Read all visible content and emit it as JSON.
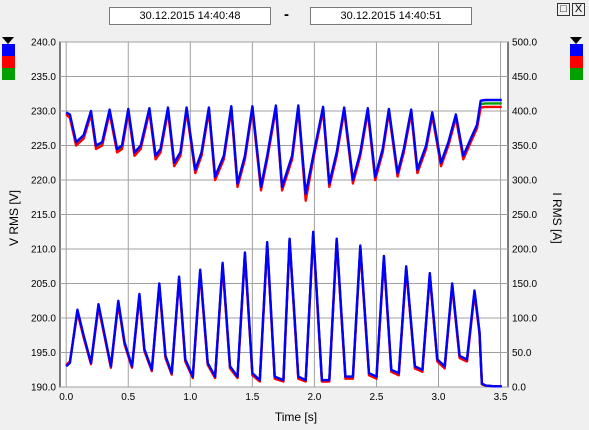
{
  "header": {
    "start_time": "30.12.2015     14:40:48",
    "separator": "-",
    "end_time": "30.12.2015     14:40:51"
  },
  "window_buttons": {
    "restore": "□",
    "close": "X"
  },
  "colors": {
    "phase1": "#0000ff",
    "phase2": "#ff0000",
    "phase3": "#00a000",
    "grid": "#a0a0a0",
    "plot_bg": "#ffffff"
  },
  "chart_data": {
    "type": "line",
    "title": "",
    "xlabel": "Time [s]",
    "ylabel_left": "V RMS [V]",
    "ylabel_right": "I RMS [A]",
    "xlim": [
      -0.05,
      3.56
    ],
    "ylim_left": [
      190.0,
      240.0
    ],
    "ylim_right": [
      0.0,
      500.0
    ],
    "x_ticks": [
      "0.0",
      "0.5",
      "1.0",
      "1.5",
      "2.0",
      "2.5",
      "3.0",
      "3.5"
    ],
    "y_ticks_left": [
      "190.0",
      "195.0",
      "200.0",
      "205.0",
      "210.0",
      "215.0",
      "220.0",
      "225.0",
      "230.0",
      "235.0",
      "240.0"
    ],
    "y_ticks_right": [
      "0.0",
      "50.0",
      "100.0",
      "150.0",
      "200.0",
      "250.0",
      "300.0",
      "350.0",
      "400.0",
      "450.0",
      "500.0"
    ],
    "grid": true,
    "legend": "left and right color swatches (blue, red, green)",
    "series": [
      {
        "axis": "left",
        "color": "#0000ff",
        "x": [
          0.0,
          0.03,
          0.08,
          0.14,
          0.2,
          0.24,
          0.29,
          0.35,
          0.41,
          0.45,
          0.5,
          0.55,
          0.6,
          0.67,
          0.72,
          0.76,
          0.82,
          0.87,
          0.92,
          0.97,
          1.04,
          1.09,
          1.15,
          1.2,
          1.27,
          1.33,
          1.38,
          1.44,
          1.5,
          1.57,
          1.62,
          1.69,
          1.74,
          1.82,
          1.87,
          1.93,
          1.99,
          2.07,
          2.12,
          2.18,
          2.24,
          2.31,
          2.37,
          2.43,
          2.49,
          2.55,
          2.6,
          2.67,
          2.72,
          2.78,
          2.83,
          2.9,
          2.95,
          3.02,
          3.08,
          3.14,
          3.2,
          3.26,
          3.31,
          3.34,
          3.38,
          3.45,
          3.51
        ],
        "y": [
          229.8,
          229.5,
          225.5,
          226.5,
          230.0,
          225.0,
          225.5,
          230.2,
          224.5,
          225.0,
          230.3,
          224.0,
          225.0,
          230.4,
          223.5,
          224.5,
          230.5,
          222.5,
          224.0,
          230.5,
          221.5,
          224.0,
          230.5,
          220.5,
          223.5,
          230.7,
          219.5,
          223.5,
          230.7,
          219.0,
          223.5,
          230.8,
          219.0,
          223.5,
          230.8,
          218.0,
          223.5,
          230.6,
          219.5,
          224.0,
          230.5,
          220.0,
          224.0,
          230.4,
          220.5,
          224.5,
          230.3,
          221.0,
          224.5,
          230.2,
          221.5,
          225.0,
          229.8,
          222.5,
          225.5,
          229.5,
          223.5,
          226.0,
          228.0,
          231.5,
          231.6,
          231.6,
          231.6
        ]
      },
      {
        "axis": "left",
        "color": "#ff0000",
        "x": [
          0.0,
          0.03,
          0.08,
          0.14,
          0.2,
          0.24,
          0.29,
          0.35,
          0.41,
          0.45,
          0.5,
          0.55,
          0.6,
          0.67,
          0.72,
          0.76,
          0.82,
          0.87,
          0.92,
          0.97,
          1.04,
          1.09,
          1.15,
          1.2,
          1.27,
          1.33,
          1.38,
          1.44,
          1.5,
          1.57,
          1.62,
          1.69,
          1.74,
          1.82,
          1.87,
          1.93,
          1.99,
          2.07,
          2.12,
          2.18,
          2.24,
          2.31,
          2.37,
          2.43,
          2.49,
          2.55,
          2.6,
          2.67,
          2.72,
          2.78,
          2.83,
          2.9,
          2.95,
          3.02,
          3.08,
          3.14,
          3.2,
          3.26,
          3.31,
          3.34,
          3.38,
          3.45,
          3.51
        ],
        "y": [
          229.5,
          229.0,
          225.0,
          226.0,
          229.5,
          224.5,
          225.0,
          229.7,
          224.0,
          224.5,
          229.8,
          223.5,
          224.5,
          229.9,
          223.0,
          224.0,
          230.0,
          222.0,
          223.5,
          230.0,
          221.0,
          223.5,
          230.0,
          220.0,
          223.0,
          230.2,
          219.0,
          223.0,
          230.2,
          218.5,
          223.0,
          230.3,
          218.5,
          223.0,
          230.3,
          217.0,
          223.0,
          230.1,
          219.0,
          223.5,
          230.0,
          219.5,
          223.5,
          229.9,
          220.0,
          224.0,
          229.8,
          220.5,
          224.0,
          229.7,
          221.0,
          224.5,
          229.3,
          222.0,
          225.0,
          229.0,
          223.0,
          225.5,
          227.5,
          230.5,
          230.6,
          230.6,
          230.6
        ]
      },
      {
        "axis": "left",
        "color": "#00a000",
        "x": [
          0.0,
          0.03,
          0.08,
          0.14,
          0.2,
          0.24,
          0.29,
          0.35,
          0.41,
          0.45,
          0.5,
          0.55,
          0.6,
          0.67,
          0.72,
          0.76,
          0.82,
          0.87,
          0.92,
          0.97,
          1.04,
          1.09,
          1.15,
          1.2,
          1.27,
          1.33,
          1.38,
          1.44,
          1.5,
          1.57,
          1.62,
          1.69,
          1.74,
          1.82,
          1.87,
          1.93,
          1.99,
          2.07,
          2.12,
          2.18,
          2.24,
          2.31,
          2.37,
          2.43,
          2.49,
          2.55,
          2.6,
          2.67,
          2.72,
          2.78,
          2.83,
          2.9,
          2.95,
          3.02,
          3.08,
          3.14,
          3.2,
          3.26,
          3.31,
          3.34,
          3.38,
          3.45,
          3.51
        ],
        "y": [
          229.6,
          229.2,
          225.3,
          226.3,
          229.8,
          224.8,
          225.3,
          230.0,
          224.3,
          224.8,
          230.1,
          223.8,
          224.8,
          230.2,
          223.3,
          224.3,
          230.3,
          222.3,
          223.8,
          230.3,
          221.3,
          223.8,
          230.3,
          220.3,
          223.3,
          230.5,
          219.3,
          223.3,
          230.5,
          218.8,
          223.3,
          230.6,
          218.8,
          223.3,
          230.6,
          217.6,
          223.3,
          230.4,
          219.3,
          223.8,
          230.3,
          219.8,
          223.8,
          230.2,
          220.3,
          224.3,
          230.1,
          220.8,
          224.3,
          230.0,
          221.3,
          224.8,
          229.6,
          222.3,
          225.3,
          229.3,
          223.3,
          225.8,
          227.8,
          231.0,
          231.1,
          231.1,
          231.1
        ]
      },
      {
        "axis": "right",
        "color": "#0000ff",
        "x": [
          0.0,
          0.03,
          0.09,
          0.14,
          0.2,
          0.26,
          0.31,
          0.36,
          0.42,
          0.47,
          0.53,
          0.59,
          0.63,
          0.69,
          0.75,
          0.8,
          0.85,
          0.91,
          0.96,
          1.02,
          1.08,
          1.14,
          1.2,
          1.26,
          1.32,
          1.38,
          1.44,
          1.5,
          1.56,
          1.62,
          1.68,
          1.75,
          1.8,
          1.87,
          1.93,
          1.99,
          2.06,
          2.12,
          2.18,
          2.25,
          2.31,
          2.37,
          2.44,
          2.5,
          2.56,
          2.62,
          2.68,
          2.74,
          2.81,
          2.87,
          2.93,
          2.99,
          3.05,
          3.11,
          3.17,
          3.23,
          3.29,
          3.33,
          3.35,
          3.38,
          3.45,
          3.51
        ],
        "y": [
          30.0,
          35.0,
          112.0,
          75.0,
          35.0,
          120.0,
          75.0,
          30.0,
          125.0,
          65.0,
          30.0,
          135.0,
          55.0,
          25.0,
          150.0,
          45.0,
          20.0,
          160.0,
          40.0,
          15.0,
          170.0,
          35.0,
          15.0,
          180.0,
          30.0,
          15.0,
          195.0,
          20.0,
          10.0,
          210.0,
          15.0,
          10.0,
          215.0,
          15.0,
          10.0,
          225.0,
          10.0,
          10.0,
          215.0,
          15.0,
          15.0,
          205.0,
          20.0,
          15.0,
          190.0,
          25.0,
          20.0,
          175.0,
          30.0,
          25.0,
          165.0,
          40.0,
          30.0,
          150.0,
          45.0,
          40.0,
          140.0,
          80.0,
          5.0,
          2.0,
          1.0,
          1.0
        ]
      },
      {
        "axis": "right",
        "color": "#ff0000",
        "x": [
          0.0,
          0.03,
          0.09,
          0.14,
          0.2,
          0.26,
          0.31,
          0.36,
          0.42,
          0.47,
          0.53,
          0.59,
          0.63,
          0.69,
          0.75,
          0.8,
          0.85,
          0.91,
          0.96,
          1.02,
          1.08,
          1.14,
          1.2,
          1.26,
          1.32,
          1.38,
          1.44,
          1.5,
          1.56,
          1.62,
          1.68,
          1.75,
          1.8,
          1.87,
          1.93,
          1.99,
          2.06,
          2.12,
          2.18,
          2.25,
          2.31,
          2.37,
          2.44,
          2.5,
          2.56,
          2.62,
          2.68,
          2.74,
          2.81,
          2.87,
          2.93,
          2.99,
          3.05,
          3.11,
          3.17,
          3.23,
          3.29,
          3.33,
          3.35,
          3.38,
          3.45,
          3.51
        ],
        "y": [
          32.0,
          37.0,
          108.0,
          72.0,
          33.0,
          116.0,
          72.0,
          28.0,
          121.0,
          62.0,
          28.0,
          131.0,
          52.0,
          23.0,
          146.0,
          42.0,
          18.0,
          156.0,
          37.0,
          13.0,
          166.0,
          32.0,
          13.0,
          176.0,
          27.0,
          13.0,
          191.0,
          17.0,
          8.0,
          206.0,
          12.0,
          8.0,
          211.0,
          12.0,
          8.0,
          221.0,
          8.0,
          8.0,
          211.0,
          12.0,
          12.0,
          201.0,
          17.0,
          12.0,
          186.0,
          22.0,
          17.0,
          171.0,
          27.0,
          22.0,
          161.0,
          37.0,
          27.0,
          146.0,
          42.0,
          37.0,
          136.0,
          77.0,
          4.0,
          2.0,
          1.0,
          1.0
        ]
      },
      {
        "axis": "right",
        "color": "#00a000",
        "x": [
          0.0,
          0.03,
          0.09,
          0.14,
          0.2,
          0.26,
          0.31,
          0.36,
          0.42,
          0.47,
          0.53,
          0.59,
          0.63,
          0.69,
          0.75,
          0.8,
          0.85,
          0.91,
          0.96,
          1.02,
          1.08,
          1.14,
          1.2,
          1.26,
          1.32,
          1.38,
          1.44,
          1.5,
          1.56,
          1.62,
          1.68,
          1.75,
          1.8,
          1.87,
          1.93,
          1.99,
          2.06,
          2.12,
          2.18,
          2.25,
          2.31,
          2.37,
          2.44,
          2.5,
          2.56,
          2.62,
          2.68,
          2.74,
          2.81,
          2.87,
          2.93,
          2.99,
          3.05,
          3.11,
          3.17,
          3.23,
          3.29,
          3.33,
          3.35,
          3.38,
          3.45,
          3.51
        ],
        "y": [
          31.0,
          36.0,
          110.0,
          74.0,
          34.0,
          118.0,
          74.0,
          29.0,
          123.0,
          64.0,
          29.0,
          133.0,
          54.0,
          24.0,
          148.0,
          44.0,
          19.0,
          158.0,
          39.0,
          14.0,
          168.0,
          34.0,
          14.0,
          178.0,
          29.0,
          14.0,
          193.0,
          19.0,
          9.0,
          208.0,
          14.0,
          9.0,
          213.0,
          14.0,
          9.0,
          223.0,
          9.0,
          9.0,
          213.0,
          14.0,
          14.0,
          203.0,
          19.0,
          14.0,
          188.0,
          24.0,
          19.0,
          173.0,
          29.0,
          24.0,
          163.0,
          39.0,
          29.0,
          148.0,
          44.0,
          39.0,
          138.0,
          79.0,
          4.0,
          2.0,
          1.0,
          1.0
        ]
      }
    ]
  }
}
